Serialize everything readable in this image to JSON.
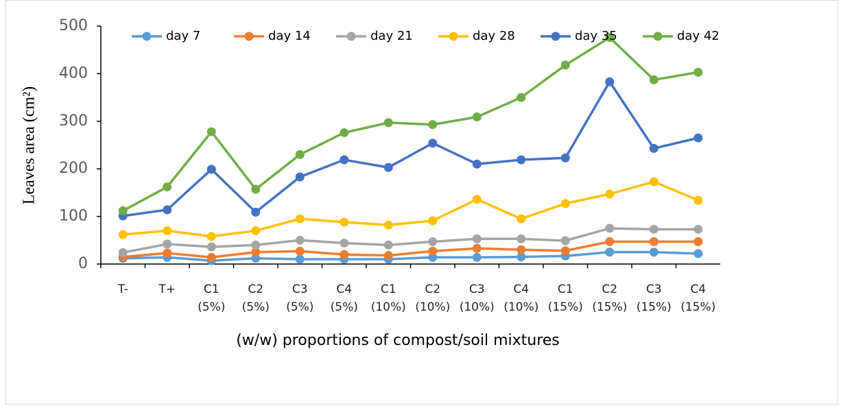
{
  "chart_data": {
    "type": "line",
    "y_label": "Leaves area (cm²)",
    "x_label": "(w/w) proportions of compost/soil mixtures",
    "categories": [
      "T-",
      "T+",
      "C1 (5%)",
      "C2 (5%)",
      "C3 (5%)",
      "C4 (5%)",
      "C1 (10%)",
      "C2 (10%)",
      "C3 (10%)",
      "C4 (10%)",
      "C1 (15%)",
      "C2 (15%)",
      "C3 (15%)",
      "C4 (15%)"
    ],
    "series": [
      {
        "name": "day 7",
        "color": "#5b9bd5",
        "values": [
          12,
          14,
          7,
          12,
          10,
          10,
          10,
          14,
          14,
          15,
          17,
          25,
          25,
          22
        ]
      },
      {
        "name": "day 14",
        "color": "#ed7d31",
        "values": [
          15,
          23,
          14,
          25,
          27,
          20,
          18,
          27,
          33,
          30,
          28,
          47,
          47,
          47
        ]
      },
      {
        "name": "day 21",
        "color": "#a5a5a5",
        "values": [
          24,
          42,
          36,
          40,
          50,
          44,
          40,
          47,
          53,
          53,
          49,
          75,
          73,
          73
        ]
      },
      {
        "name": "day 28",
        "color": "#ffc000",
        "values": [
          62,
          70,
          58,
          70,
          95,
          88,
          82,
          91,
          136,
          95,
          127,
          147,
          173,
          134
        ]
      },
      {
        "name": "day 35",
        "color": "#4472c4",
        "values": [
          101,
          114,
          199,
          109,
          183,
          219,
          203,
          254,
          210,
          219,
          223,
          383,
          243,
          265
        ]
      },
      {
        "name": "day 42",
        "color": "#70ad47",
        "values": [
          112,
          162,
          278,
          157,
          230,
          276,
          297,
          293,
          309,
          350,
          418,
          476,
          387,
          403
        ]
      }
    ],
    "ylim": [
      0,
      500
    ],
    "yticks": [
      0,
      100,
      200,
      300,
      400,
      500
    ],
    "grid": false,
    "legend": "top"
  }
}
